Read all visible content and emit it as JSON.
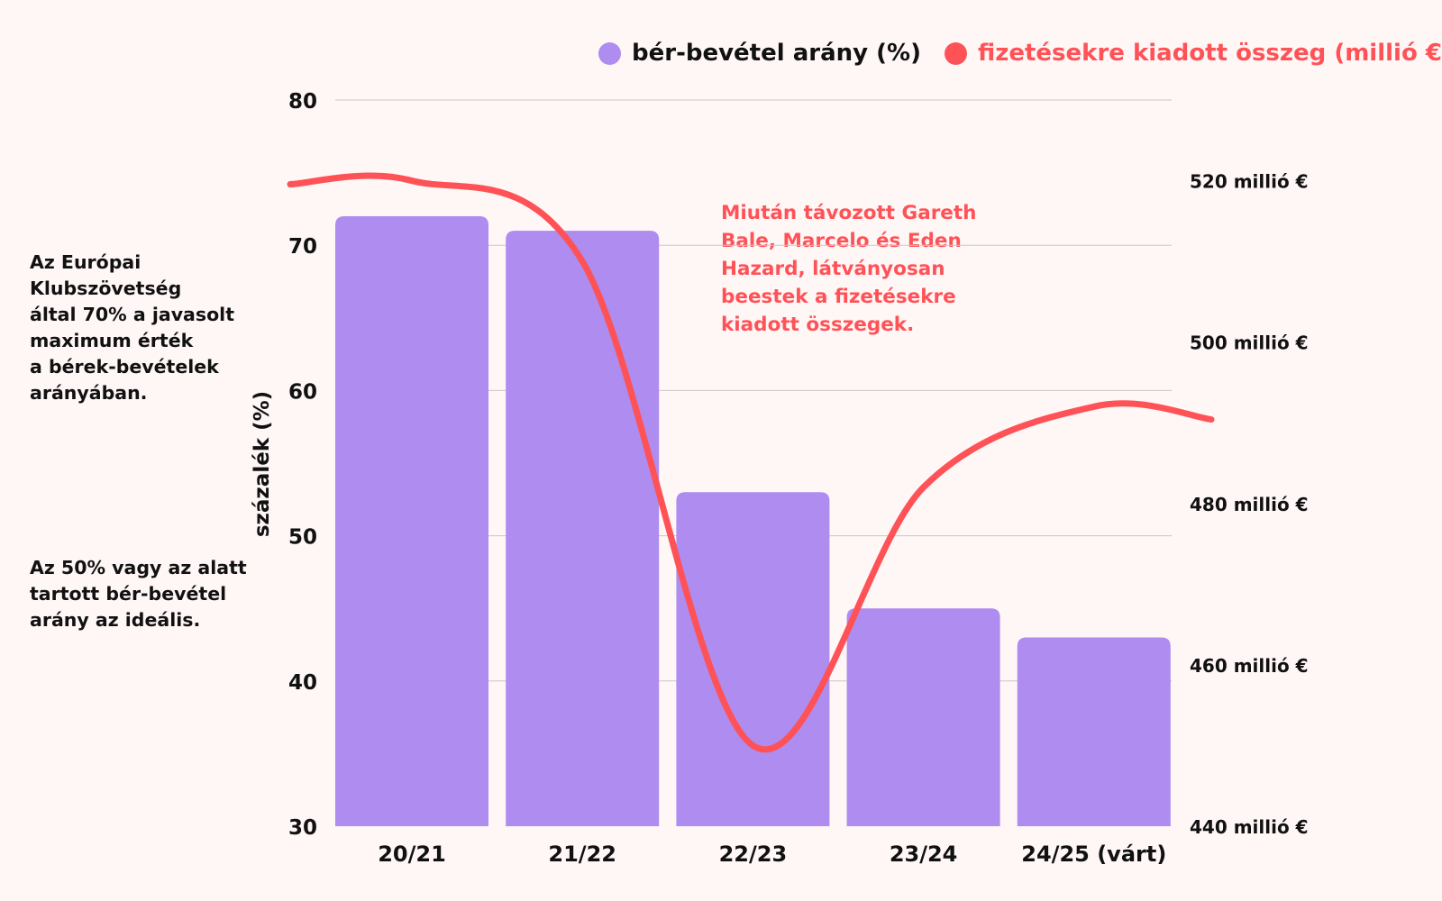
{
  "legend": {
    "bar_label": "bér-bevétel arány (%)",
    "line_label": "fizetésekre kiadott összeg (millió €)"
  },
  "notes": {
    "ecl": "Az Európai Klubszövetség\náltal 70% a javasolt\nmaximum érték\na bérek-bevételek\narányában.",
    "ideal": "Az 50% vagy az alatt\ntartott bér-bevétel\narány az ideális."
  },
  "annotation": "Miután távozott Gareth\nBale, Marcelo és Eden\nHazard, látványosan\nbeestek a fizetésekre\nkiadott összegek.",
  "colors": {
    "background": "#fff6f6",
    "bar": "#ae8cf0",
    "line": "#ff5257",
    "grid": "#c8c8c8",
    "text": "#111111"
  },
  "chart_data": {
    "type": "bar",
    "categories": [
      "20/21",
      "21/22",
      "22/23",
      "23/24",
      "24/25 (várt)"
    ],
    "series": [
      {
        "name": "bér-bevétel arány (%)",
        "type": "bar",
        "axis": "left",
        "values": [
          72,
          71,
          53,
          45,
          43
        ]
      },
      {
        "name": "fizetésekre kiadott összeg (millió €)",
        "type": "line",
        "axis": "right",
        "smooth": true,
        "values": [
          520,
          510,
          450,
          482,
          492
        ]
      }
    ],
    "ylabel": "százalék (%)",
    "ylim": [
      30,
      80
    ],
    "yticks": [
      30,
      40,
      50,
      60,
      70,
      80
    ],
    "y2lim": [
      440,
      530
    ],
    "y2ticks": [
      440,
      460,
      480,
      500,
      520
    ],
    "y2tick_labels": [
      "440 millió €",
      "460 millió €",
      "480 millió €",
      "500 millió €",
      "520 millió €"
    ],
    "grid": true,
    "legend_position": "top-right"
  }
}
